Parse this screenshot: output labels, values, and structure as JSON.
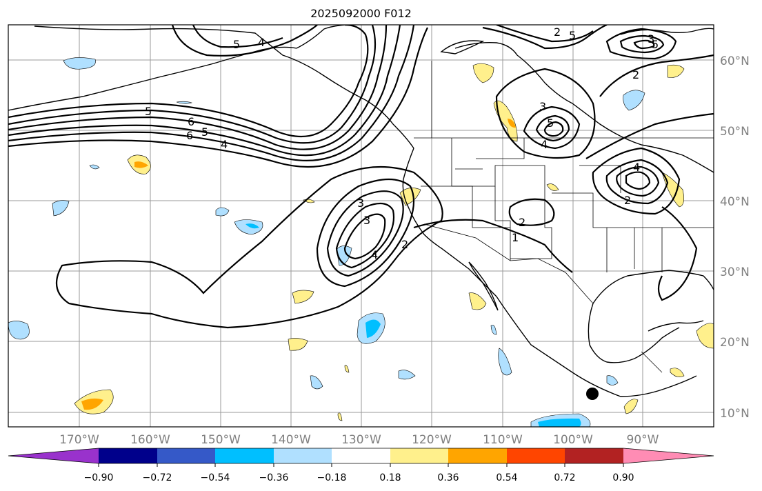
{
  "title": "2025092000 F012",
  "map": {
    "lat_labels": [
      "60°N",
      "50°N",
      "40°N",
      "30°N",
      "20°N",
      "10°N"
    ],
    "lon_labels": [
      "170°W",
      "160°W",
      "150°W",
      "140°W",
      "130°W",
      "120°W",
      "110°W",
      "100°W",
      "90°W"
    ],
    "grid": true,
    "contour_labels": [
      "5",
      "4",
      "5",
      "6",
      "5",
      "6",
      "4",
      "2",
      "3",
      "5",
      "4",
      "5",
      "3",
      "2",
      "5",
      "4",
      "2",
      "3",
      "4",
      "1",
      "2",
      "3",
      "2"
    ],
    "colors": {
      "positive": [
        "#fff08c",
        "#ffa500",
        "#ff4500",
        "#b22222",
        "#ff8cb4"
      ],
      "negative": [
        "#b0e0ff",
        "#00bfff",
        "#3c64d2",
        "#00008b",
        "#9932cc"
      ]
    }
  },
  "colorbar": {
    "ticks": [
      "−0.90",
      "−0.72",
      "−0.54",
      "−0.36",
      "−0.18",
      "0.18",
      "0.36",
      "0.54",
      "0.72",
      "0.90"
    ],
    "colors": [
      "#9932cc",
      "#00008b",
      "#3559c8",
      "#00bfff",
      "#b0e0ff",
      "#ffffff",
      "#fff08c",
      "#ffa500",
      "#ff4500",
      "#b22222",
      "#ff8cb4"
    ]
  }
}
